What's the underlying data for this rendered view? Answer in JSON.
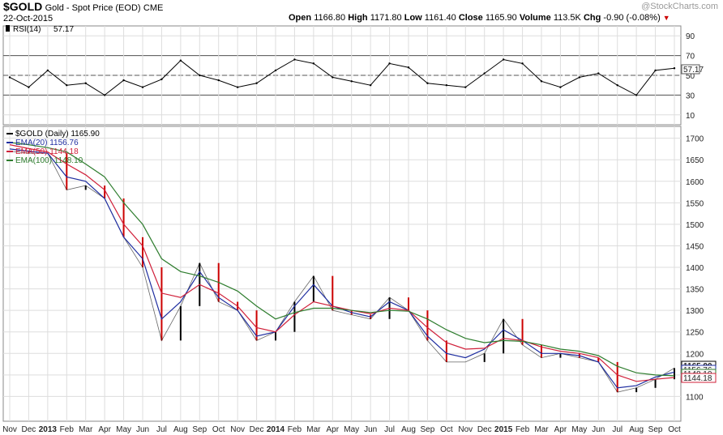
{
  "header": {
    "symbol": "$GOLD",
    "description": "Gold - Spot Price (EOD)",
    "exchange": "CME",
    "date": "22-Oct-2015",
    "open_label": "Open",
    "open": "1166.80",
    "high_label": "High",
    "high": "1171.80",
    "low_label": "Low",
    "low": "1161.40",
    "close_label": "Close",
    "close": "1165.90",
    "volume_label": "Volume",
    "volume": "113.5K",
    "chg_label": "Chg",
    "chg": "-0.90 (-0.08%)",
    "watermark": "@StockCharts.com"
  },
  "colors": {
    "price_up": "#000000",
    "price_down": "#cc0000",
    "ema20": "#1f2ea0",
    "ema50": "#d0203a",
    "ema100": "#2e7d2e",
    "rsi_line": "#000000",
    "grid": "#dddddd"
  },
  "chart_data": [
    {
      "type": "line",
      "panel": "rsi",
      "label": "RSI(14)",
      "last_value": "57.17",
      "last_label": "57.17",
      "ylim": [
        0,
        100
      ],
      "yticks": [
        "90",
        "70",
        "50",
        "30",
        "10"
      ],
      "reference_lines": [
        70,
        50,
        30
      ],
      "x": [
        "Nov",
        "Dec",
        "2013",
        "Feb",
        "Mar",
        "Apr",
        "May",
        "Jun",
        "Jul",
        "Aug",
        "Sep",
        "Oct",
        "Nov",
        "Dec",
        "2014",
        "Feb",
        "Mar",
        "Apr",
        "May",
        "Jun",
        "Jul",
        "Aug",
        "Sep",
        "Oct",
        "Nov",
        "Dec",
        "2015",
        "Feb",
        "Mar",
        "Apr",
        "May",
        "Jun",
        "Jul",
        "Aug",
        "Sep",
        "Oct"
      ],
      "values": [
        48,
        38,
        55,
        40,
        42,
        30,
        45,
        38,
        46,
        65,
        50,
        45,
        38,
        42,
        55,
        66,
        62,
        48,
        44,
        40,
        62,
        58,
        42,
        40,
        38,
        52,
        66,
        62,
        44,
        38,
        48,
        52,
        40,
        30,
        55,
        57.17
      ]
    },
    {
      "type": "line",
      "panel": "price",
      "label": "$GOLD (Daily)",
      "last_value": "1165.90",
      "ylim": [
        1050,
        1720
      ],
      "yticks": [
        "1700",
        "1650",
        "1600",
        "1550",
        "1500",
        "1450",
        "1400",
        "1350",
        "1300",
        "1250",
        "1200",
        "1150",
        "1100"
      ],
      "x": [
        "Nov",
        "Dec",
        "2013",
        "Feb",
        "Mar",
        "Apr",
        "May",
        "Jun",
        "Jul",
        "Aug",
        "Sep",
        "Oct",
        "Nov",
        "Dec",
        "2014",
        "Feb",
        "Mar",
        "Apr",
        "May",
        "Jun",
        "Jul",
        "Aug",
        "Sep",
        "Oct",
        "Nov",
        "Dec",
        "2015",
        "Feb",
        "Mar",
        "Apr",
        "May",
        "Jun",
        "Jul",
        "Aug",
        "Sep",
        "Oct"
      ],
      "series": [
        {
          "name": "$GOLD (Daily) 1165.90",
          "values": [
            1670,
            1665,
            1665,
            1580,
            1590,
            1560,
            1470,
            1400,
            1230,
            1310,
            1410,
            1320,
            1300,
            1230,
            1250,
            1320,
            1380,
            1300,
            1290,
            1280,
            1330,
            1300,
            1230,
            1180,
            1180,
            1200,
            1280,
            1220,
            1190,
            1200,
            1190,
            1180,
            1110,
            1120,
            1140,
            1165.9
          ]
        },
        {
          "name": "EMA(20) 1156.76",
          "values": [
            1675,
            1670,
            1665,
            1610,
            1600,
            1560,
            1470,
            1420,
            1280,
            1320,
            1390,
            1330,
            1300,
            1240,
            1250,
            1310,
            1360,
            1310,
            1295,
            1285,
            1320,
            1300,
            1240,
            1200,
            1190,
            1210,
            1255,
            1230,
            1200,
            1200,
            1195,
            1180,
            1120,
            1125,
            1145,
            1156.76
          ]
        },
        {
          "name": "EMA(50) 1144.18",
          "values": [
            1685,
            1676,
            1668,
            1640,
            1615,
            1580,
            1500,
            1450,
            1340,
            1330,
            1360,
            1340,
            1310,
            1260,
            1250,
            1290,
            1320,
            1310,
            1300,
            1292,
            1305,
            1300,
            1260,
            1225,
            1210,
            1212,
            1235,
            1230,
            1215,
            1205,
            1200,
            1190,
            1150,
            1135,
            1140,
            1144.18
          ]
        },
        {
          "name": "EMA(100) 1148.10",
          "values": [
            1690,
            1685,
            1678,
            1668,
            1640,
            1610,
            1550,
            1500,
            1420,
            1390,
            1380,
            1365,
            1345,
            1310,
            1280,
            1295,
            1305,
            1305,
            1300,
            1295,
            1300,
            1298,
            1280,
            1255,
            1235,
            1225,
            1230,
            1228,
            1220,
            1210,
            1205,
            1195,
            1170,
            1155,
            1150,
            1148.1
          ]
        }
      ],
      "price_labels": [
        "1165.90",
        "1156.76",
        "1148.10",
        "1144.18"
      ]
    }
  ]
}
